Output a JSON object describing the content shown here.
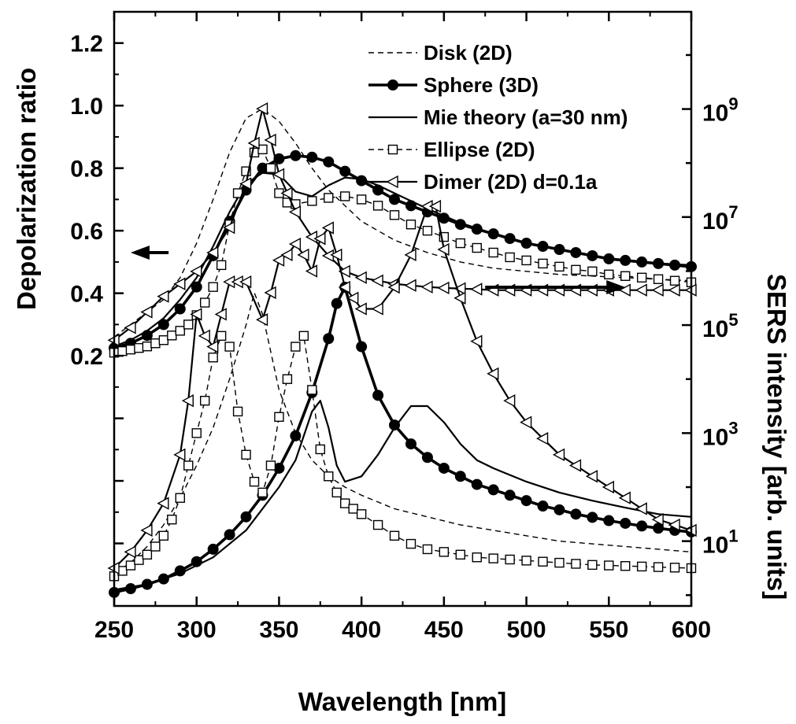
{
  "chart_data": {
    "type": "line",
    "xlabel": "Wavelength [nm]",
    "ylabel_left": "Depolarization ratio",
    "ylabel_right": "SERS intensity [arb. units]",
    "xlim": [
      250,
      600
    ],
    "x_ticks": [
      "250",
      "300",
      "350",
      "400",
      "450",
      "500",
      "550",
      "600"
    ],
    "ylim_left": [
      -0.6,
      1.3
    ],
    "y_ticks_left": [
      "0.2",
      "0.4",
      "0.6",
      "0.8",
      "1.0",
      "1.2"
    ],
    "y_scale_right": "log",
    "ylim_right_log10": [
      -0.2,
      10.8
    ],
    "y_ticks_right": [
      {
        "base": "10",
        "exp": "1"
      },
      {
        "base": "10",
        "exp": "3"
      },
      {
        "base": "10",
        "exp": "5"
      },
      {
        "base": "10",
        "exp": "7"
      },
      {
        "base": "10",
        "exp": "9"
      }
    ],
    "grid": false,
    "legend_position": "top-right",
    "arrows": [
      {
        "points_to": "left axis",
        "x": [
          283,
          260
        ],
        "y": [
          0.53,
          0.53
        ]
      },
      {
        "points_to": "right axis",
        "x": [
          475,
          560
        ],
        "y": [
          5.7,
          5.7
        ]
      }
    ],
    "series": [
      {
        "name": "Disk (2D)",
        "axis": "left",
        "style": "dashed",
        "marker": "none",
        "x": [
          250,
          260,
          270,
          280,
          290,
          300,
          310,
          320,
          330,
          340,
          350,
          360,
          370,
          380,
          390,
          400,
          420,
          440,
          460,
          480,
          500,
          520,
          540,
          560,
          580,
          600
        ],
        "y": [
          0.26,
          0.3,
          0.34,
          0.38,
          0.45,
          0.56,
          0.7,
          0.85,
          0.96,
          0.99,
          0.95,
          0.88,
          0.8,
          0.73,
          0.68,
          0.63,
          0.57,
          0.53,
          0.5,
          0.48,
          0.47,
          0.46,
          0.455,
          0.45,
          0.445,
          0.44
        ]
      },
      {
        "name": "Sphere (3D)",
        "axis": "left",
        "style": "solid-bold",
        "marker": "filled-circle",
        "x": [
          250,
          260,
          270,
          280,
          290,
          300,
          310,
          320,
          330,
          340,
          350,
          360,
          370,
          380,
          390,
          400,
          410,
          420,
          430,
          440,
          450,
          460,
          470,
          480,
          490,
          500,
          510,
          520,
          530,
          540,
          550,
          560,
          570,
          580,
          590,
          600
        ],
        "y": [
          0.225,
          0.24,
          0.265,
          0.3,
          0.35,
          0.42,
          0.52,
          0.63,
          0.73,
          0.8,
          0.83,
          0.84,
          0.835,
          0.82,
          0.79,
          0.76,
          0.73,
          0.7,
          0.68,
          0.66,
          0.64,
          0.62,
          0.605,
          0.59,
          0.575,
          0.56,
          0.55,
          0.54,
          0.53,
          0.52,
          0.51,
          0.505,
          0.5,
          0.495,
          0.49,
          0.485
        ]
      },
      {
        "name": "Mie theory (a=30 nm)",
        "axis": "left",
        "style": "solid",
        "marker": "none",
        "x": [
          250,
          260,
          270,
          280,
          290,
          300,
          310,
          320,
          330,
          340,
          350,
          360,
          370,
          380,
          390,
          400,
          410,
          420,
          440,
          460,
          480,
          500,
          520,
          540,
          560,
          580,
          600
        ],
        "y": [
          0.23,
          0.25,
          0.28,
          0.32,
          0.38,
          0.45,
          0.55,
          0.66,
          0.75,
          0.785,
          0.78,
          0.725,
          0.71,
          0.745,
          0.77,
          0.765,
          0.745,
          0.72,
          0.67,
          0.625,
          0.59,
          0.56,
          0.54,
          0.52,
          0.505,
          0.495,
          0.49
        ]
      },
      {
        "name": "Ellipse (2D)",
        "axis": "left",
        "style": "dashed",
        "marker": "open-square",
        "x": [
          250,
          255,
          260,
          265,
          270,
          275,
          280,
          285,
          290,
          295,
          300,
          305,
          310,
          315,
          320,
          325,
          330,
          335,
          340,
          345,
          350,
          355,
          360,
          370,
          380,
          390,
          400,
          410,
          420,
          430,
          440,
          450,
          460,
          470,
          480,
          490,
          500,
          510,
          520,
          530,
          540,
          550,
          560,
          570,
          580,
          590,
          600
        ],
        "y": [
          0.21,
          0.215,
          0.22,
          0.225,
          0.23,
          0.24,
          0.25,
          0.265,
          0.28,
          0.3,
          0.33,
          0.37,
          0.42,
          0.49,
          0.62,
          0.72,
          0.79,
          0.85,
          0.86,
          0.8,
          0.72,
          0.69,
          0.685,
          0.695,
          0.705,
          0.71,
          0.7,
          0.68,
          0.65,
          0.62,
          0.6,
          0.58,
          0.56,
          0.545,
          0.53,
          0.515,
          0.505,
          0.495,
          0.485,
          0.475,
          0.47,
          0.46,
          0.455,
          0.45,
          0.445,
          0.44,
          0.435
        ]
      },
      {
        "name": "Dimer (2D) d=0.1a",
        "axis": "left",
        "style": "solid",
        "marker": "open-triangle-left",
        "x": [
          250,
          260,
          270,
          280,
          290,
          300,
          310,
          320,
          330,
          335,
          340,
          345,
          350,
          355,
          360,
          370,
          380,
          390,
          400,
          410,
          420,
          430,
          440,
          450,
          460,
          470,
          480,
          490,
          500,
          510,
          520,
          530,
          540,
          550,
          560,
          570,
          580,
          590,
          600
        ],
        "y": [
          0.25,
          0.29,
          0.34,
          0.39,
          0.43,
          0.47,
          0.53,
          0.61,
          0.75,
          0.88,
          0.99,
          0.89,
          0.78,
          0.72,
          0.66,
          0.58,
          0.52,
          0.47,
          0.45,
          0.44,
          0.43,
          0.425,
          0.42,
          0.417,
          0.415,
          0.413,
          0.41,
          0.41,
          0.41,
          0.41,
          0.41,
          0.41,
          0.41,
          0.41,
          0.41,
          0.41,
          0.41,
          0.41,
          0.41
        ]
      },
      {
        "name": "Disk (2D)",
        "axis": "right",
        "style": "dashed",
        "marker": "none",
        "x": [
          250,
          260,
          270,
          280,
          290,
          300,
          310,
          320,
          330,
          335,
          340,
          345,
          350,
          360,
          370,
          380,
          390,
          400,
          420,
          440,
          460,
          480,
          500,
          520,
          540,
          560,
          580,
          600
        ],
        "y": [
          0.4,
          0.6,
          0.9,
          1.3,
          1.8,
          2.4,
          3.1,
          4.0,
          5.0,
          5.6,
          5.2,
          4.5,
          3.8,
          3.0,
          2.5,
          2.2,
          2.0,
          1.85,
          1.6,
          1.45,
          1.3,
          1.2,
          1.1,
          1.0,
          0.95,
          0.9,
          0.85,
          0.8
        ]
      },
      {
        "name": "Sphere (3D)",
        "axis": "right",
        "style": "solid-bold",
        "marker": "filled-circle",
        "x": [
          250,
          260,
          270,
          280,
          290,
          300,
          310,
          320,
          330,
          340,
          350,
          360,
          370,
          380,
          385,
          390,
          400,
          410,
          420,
          430,
          440,
          450,
          460,
          470,
          480,
          490,
          500,
          510,
          520,
          530,
          540,
          550,
          560,
          570,
          580,
          590,
          600
        ],
        "y": [
          0.05,
          0.12,
          0.2,
          0.3,
          0.45,
          0.62,
          0.85,
          1.12,
          1.45,
          1.85,
          2.35,
          2.95,
          3.75,
          4.75,
          5.4,
          5.7,
          4.6,
          3.7,
          3.15,
          2.8,
          2.55,
          2.35,
          2.2,
          2.05,
          1.95,
          1.85,
          1.75,
          1.65,
          1.58,
          1.5,
          1.44,
          1.38,
          1.33,
          1.28,
          1.24,
          1.2,
          1.17
        ]
      },
      {
        "name": "Mie theory (a=30 nm)",
        "axis": "right",
        "style": "solid",
        "marker": "none",
        "x": [
          250,
          270,
          290,
          310,
          330,
          350,
          360,
          370,
          375,
          380,
          385,
          390,
          400,
          410,
          420,
          430,
          440,
          450,
          460,
          470,
          480,
          500,
          520,
          540,
          560,
          580,
          600
        ],
        "y": [
          0.1,
          0.2,
          0.4,
          0.7,
          1.2,
          2.0,
          2.5,
          3.4,
          3.6,
          3.1,
          2.4,
          2.1,
          2.2,
          2.6,
          3.1,
          3.5,
          3.5,
          3.2,
          2.8,
          2.5,
          2.35,
          2.1,
          1.9,
          1.75,
          1.62,
          1.5,
          1.45
        ]
      },
      {
        "name": "Ellipse (2D)",
        "axis": "right",
        "style": "dashed",
        "marker": "open-square",
        "x": [
          250,
          255,
          260,
          265,
          270,
          275,
          280,
          285,
          290,
          295,
          300,
          305,
          310,
          315,
          320,
          325,
          330,
          335,
          340,
          345,
          350,
          355,
          360,
          365,
          370,
          375,
          380,
          385,
          390,
          395,
          400,
          410,
          420,
          430,
          440,
          450,
          460,
          470,
          480,
          490,
          500,
          510,
          520,
          530,
          540,
          550,
          560,
          570,
          580,
          590,
          600
        ],
        "y": [
          0.35,
          0.45,
          0.55,
          0.65,
          0.75,
          0.9,
          1.1,
          1.4,
          1.8,
          2.4,
          3.0,
          3.6,
          4.4,
          4.8,
          4.6,
          3.4,
          2.6,
          2.1,
          1.9,
          2.4,
          3.3,
          4.0,
          4.6,
          4.8,
          3.8,
          2.7,
          2.2,
          1.9,
          1.7,
          1.6,
          1.5,
          1.3,
          1.1,
          0.95,
          0.85,
          0.8,
          0.75,
          0.7,
          0.68,
          0.66,
          0.64,
          0.62,
          0.6,
          0.58,
          0.56,
          0.55,
          0.54,
          0.53,
          0.52,
          0.51,
          0.5
        ]
      },
      {
        "name": "Dimer (2D) d=0.1a",
        "axis": "right",
        "style": "solid",
        "marker": "open-triangle-left",
        "x": [
          250,
          260,
          270,
          280,
          290,
          295,
          300,
          305,
          310,
          315,
          320,
          325,
          330,
          340,
          345,
          350,
          355,
          360,
          365,
          370,
          375,
          380,
          385,
          390,
          395,
          400,
          410,
          420,
          430,
          440,
          445,
          450,
          460,
          470,
          480,
          490,
          500,
          510,
          520,
          530,
          540,
          550,
          560,
          570,
          580,
          590,
          600
        ],
        "y": [
          0.5,
          0.8,
          1.2,
          1.7,
          2.6,
          3.6,
          5.2,
          4.8,
          4.6,
          5.2,
          5.8,
          5.8,
          5.8,
          5.1,
          5.6,
          6.2,
          6.3,
          6.5,
          6.3,
          6.0,
          6.6,
          6.8,
          6.3,
          5.7,
          5.5,
          5.3,
          5.3,
          5.7,
          6.3,
          7.2,
          7.2,
          6.4,
          5.5,
          4.7,
          4.1,
          3.6,
          3.2,
          2.9,
          2.6,
          2.4,
          2.2,
          2.0,
          1.8,
          1.6,
          1.4,
          1.3,
          1.2
        ]
      }
    ]
  },
  "legend": {
    "items": [
      {
        "label": "Disk (2D)"
      },
      {
        "label": "Sphere (3D)"
      },
      {
        "label": "Mie theory (a=30 nm)"
      },
      {
        "label": "Ellipse (2D)"
      },
      {
        "label": "Dimer (2D) d=0.1a"
      }
    ]
  }
}
